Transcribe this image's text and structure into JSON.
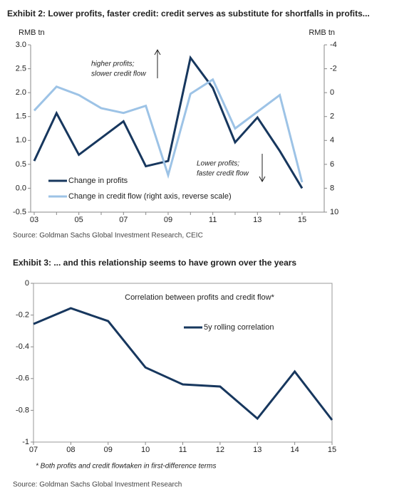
{
  "chart_data": [
    {
      "type": "line",
      "title": "Exhibit 2: Lower profits, faster credit: credit serves as substitute for shortfalls in profits...",
      "y_label": "RMB tn",
      "y2_label": "RMB tn",
      "categories": [
        "03",
        null,
        "05",
        null,
        "07",
        null,
        "09",
        null,
        "11",
        null,
        "13",
        null,
        "15"
      ],
      "series": [
        {
          "name": "Change in profits",
          "color": "#17375e",
          "values": [
            0.57,
            1.57,
            0.7,
            1.05,
            1.4,
            0.46,
            0.57,
            2.73,
            2.1,
            0.96,
            1.48,
            0.78,
            0.0
          ]
        },
        {
          "name": "Change in credit flow (right axis, reverse scale)",
          "color": "#9dc3e6",
          "axis": "y2",
          "values": [
            1.5,
            -0.5,
            0.2,
            1.3,
            1.7,
            1.1,
            6.9,
            0.1,
            -1.1,
            3.0,
            1.6,
            0.2,
            7.5
          ]
        }
      ],
      "ylim": [
        -0.5,
        3
      ],
      "yticks": [
        {
          "value": 3,
          "label": "3.0"
        },
        2.5,
        {
          "value": 2,
          "label": "2.0"
        },
        1.5,
        {
          "value": 1,
          "label": "1.0"
        },
        0.5,
        {
          "value": 0,
          "label": "0.0"
        },
        -0.5
      ],
      "y2lim": [
        -4,
        10
      ],
      "y2ticks": [
        -4,
        -2,
        0,
        2,
        4,
        6,
        8,
        10
      ],
      "y2_reversed": true,
      "grid": false,
      "legend": "lower left",
      "annotations": [
        [
          "higher profits;",
          "slower credit flow"
        ],
        [
          "Lower profits;",
          "faster credit flow"
        ]
      ],
      "source": "Source: Goldman Sachs Global Investment Research, CEIC"
    },
    {
      "type": "line",
      "title": "Exhibit 3: ... and this relationship seems to have grown over the years",
      "subtitle": "Correlation between profits and credit flow*",
      "categories": [
        "07",
        "08",
        "09",
        "10",
        "11",
        "12",
        "13",
        "14",
        "15"
      ],
      "series": [
        {
          "name": "5y rolling correlation",
          "color": "#17375e",
          "values": [
            -0.256,
            -0.157,
            -0.238,
            -0.53,
            -0.637,
            -0.65,
            -0.852,
            -0.556,
            -0.861
          ]
        }
      ],
      "ylim": [
        -1,
        0
      ],
      "yticks": [
        0,
        -0.2,
        -0.4,
        -0.6,
        -0.8,
        -1
      ],
      "grid": false,
      "legend": "upper right",
      "note": "* Both profits and credit flowtaken in first-difference terms",
      "source": "Source: Goldman Sachs Global Investment Research"
    }
  ]
}
